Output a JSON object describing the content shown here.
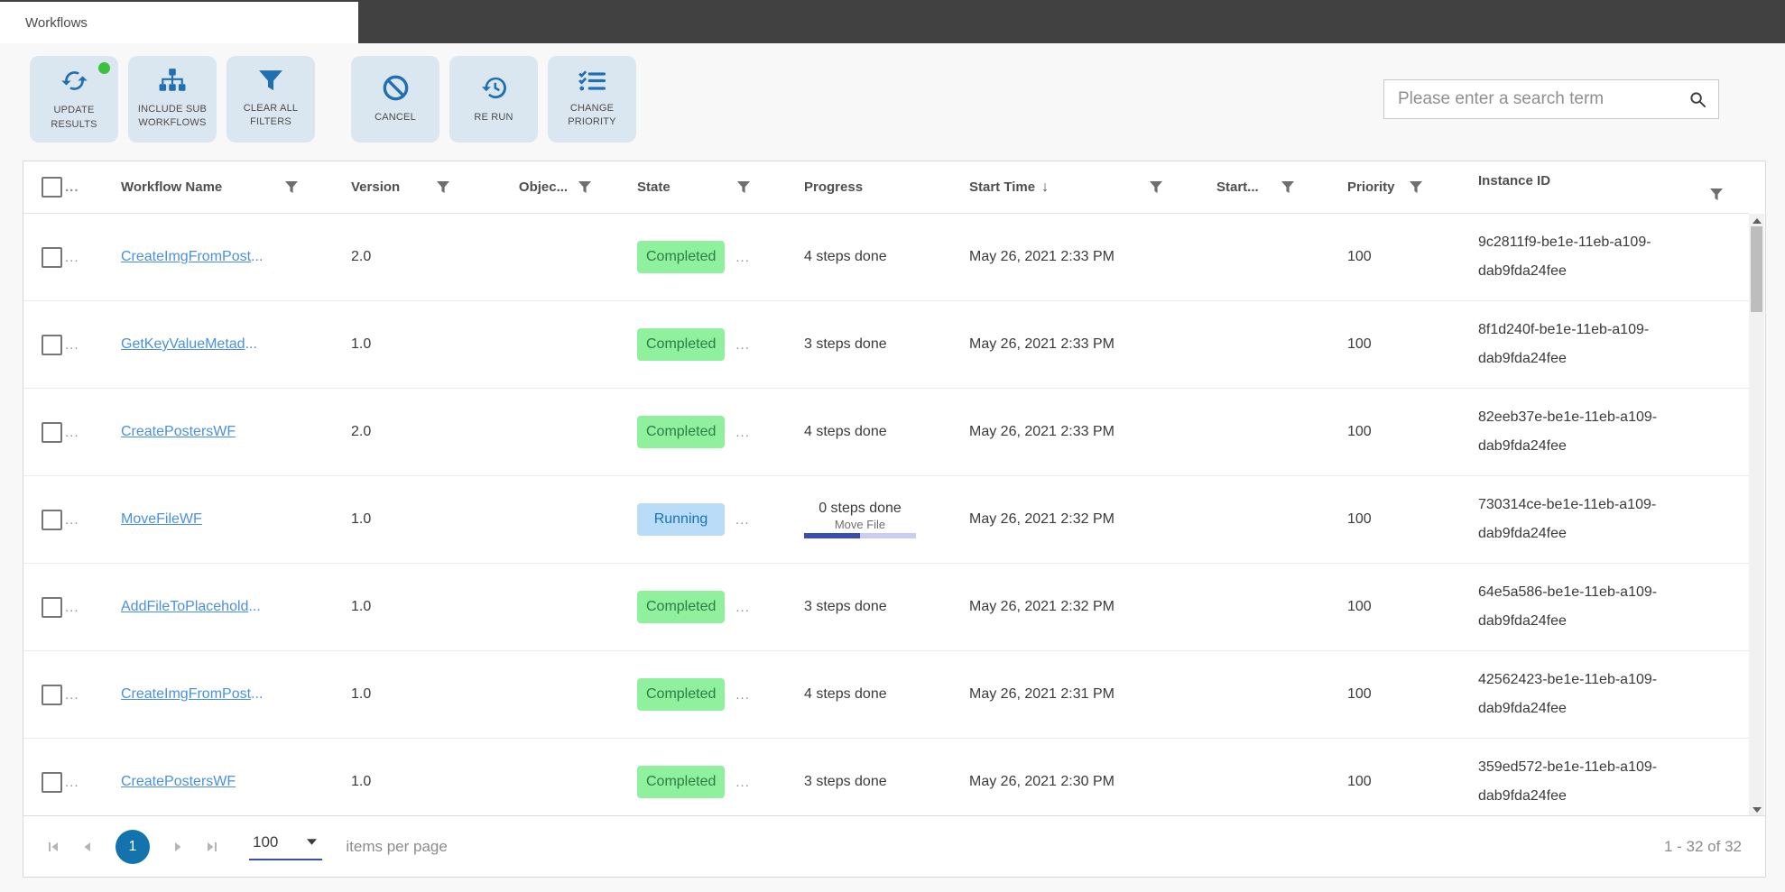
{
  "window": {
    "tab_label": "Workflows"
  },
  "toolbar": {
    "buttons": [
      {
        "label": "UPDATE RESULTS",
        "icon": "refresh-icon",
        "badge_dot": true
      },
      {
        "label": "INCLUDE SUB WORKFLOWS",
        "icon": "hierarchy-icon",
        "badge_dot": false
      },
      {
        "label": "CLEAR ALL FILTERS",
        "icon": "funnel-icon",
        "badge_dot": false
      },
      {
        "label": "CANCEL",
        "icon": "cancel-icon",
        "badge_dot": false
      },
      {
        "label": "RE RUN",
        "icon": "history-icon",
        "badge_dot": false
      },
      {
        "label": "CHANGE PRIORITY",
        "icon": "checklist-icon",
        "badge_dot": false
      }
    ]
  },
  "search": {
    "placeholder": "Please enter a search term",
    "icon": "search-icon"
  },
  "table": {
    "ellipsis": "...",
    "header": {
      "columns": [
        {
          "label": "Workflow Name",
          "filter": true
        },
        {
          "label": "Version",
          "filter": true
        },
        {
          "label": "Objec...",
          "filter": true
        },
        {
          "label": "State",
          "filter": true
        },
        {
          "label": "Progress",
          "filter": false
        },
        {
          "label": "Start Time",
          "filter": true,
          "sort_indicator": "↓"
        },
        {
          "label": "Start...",
          "filter": true
        },
        {
          "label": "Priority",
          "filter": true
        },
        {
          "label": "Instance ID",
          "filter": true
        }
      ]
    },
    "rows": [
      {
        "name": "CreateImgFromPost",
        "truncated": "...",
        "version": "2.0",
        "object": "",
        "state": "Completed",
        "progress_steps": "4 steps done",
        "progress_task": "",
        "progress_percent": 0,
        "start_time": "May 26, 2021 2:33 PM",
        "priority": "100",
        "instance_id_line1": "9c2811f9-be1e-11eb-a109-",
        "instance_id_line2": "dab9fda24fee"
      },
      {
        "name": "GetKeyValueMetad",
        "truncated": "...",
        "version": "1.0",
        "object": "",
        "state": "Completed",
        "progress_steps": "3 steps done",
        "progress_task": "",
        "progress_percent": 0,
        "start_time": "May 26, 2021 2:33 PM",
        "priority": "100",
        "instance_id_line1": "8f1d240f-be1e-11eb-a109-",
        "instance_id_line2": "dab9fda24fee"
      },
      {
        "name": "CreatePostersWF",
        "truncated": "",
        "version": "2.0",
        "object": "",
        "state": "Completed",
        "progress_steps": "4 steps done",
        "progress_task": "",
        "progress_percent": 0,
        "start_time": "May 26, 2021 2:33 PM",
        "priority": "100",
        "instance_id_line1": "82eeb37e-be1e-11eb-a109-",
        "instance_id_line2": "dab9fda24fee"
      },
      {
        "name": "MoveFileWF",
        "truncated": "",
        "version": "1.0",
        "object": "",
        "state": "Running",
        "progress_steps": "0 steps done",
        "progress_task": "Move File",
        "progress_percent": 50,
        "start_time": "May 26, 2021 2:32 PM",
        "priority": "100",
        "instance_id_line1": "730314ce-be1e-11eb-a109-",
        "instance_id_line2": "dab9fda24fee"
      },
      {
        "name": "AddFileToPlacehold",
        "truncated": "...",
        "version": "1.0",
        "object": "",
        "state": "Completed",
        "progress_steps": "3 steps done",
        "progress_task": "",
        "progress_percent": 0,
        "start_time": "May 26, 2021 2:32 PM",
        "priority": "100",
        "instance_id_line1": "64e5a586-be1e-11eb-a109-",
        "instance_id_line2": "dab9fda24fee"
      },
      {
        "name": "CreateImgFromPost",
        "truncated": "...",
        "version": "1.0",
        "object": "",
        "state": "Completed",
        "progress_steps": "4 steps done",
        "progress_task": "",
        "progress_percent": 0,
        "start_time": "May 26, 2021 2:31 PM",
        "priority": "100",
        "instance_id_line1": "42562423-be1e-11eb-a109-",
        "instance_id_line2": "dab9fda24fee"
      },
      {
        "name": "CreatePostersWF",
        "truncated": "",
        "version": "1.0",
        "object": "",
        "state": "Completed",
        "progress_steps": "3 steps done",
        "progress_task": "",
        "progress_percent": 0,
        "start_time": "May 26, 2021 2:30 PM",
        "priority": "100",
        "instance_id_line1": "359ed572-be1e-11eb-a109-",
        "instance_id_line2": "dab9fda24fee"
      }
    ]
  },
  "pagination": {
    "current_page": "1",
    "page_size": "100",
    "items_per_page_label": "items per page",
    "range_label": "1 - 32 of 32"
  },
  "colors": {
    "topbar_dark": "#414141",
    "icon_blue": "#1f6fb2",
    "link_blue": "#4a90e2",
    "completed_bg": "#8ff09d",
    "completed_text": "#2d7d46",
    "running_bg": "#b9dcf9",
    "running_text": "#1a73b7",
    "progress_bar": "#3a4db0",
    "progress_track": "#c9cef0",
    "dot_green": "#3cc13c",
    "pager_circle": "#1273ad"
  }
}
